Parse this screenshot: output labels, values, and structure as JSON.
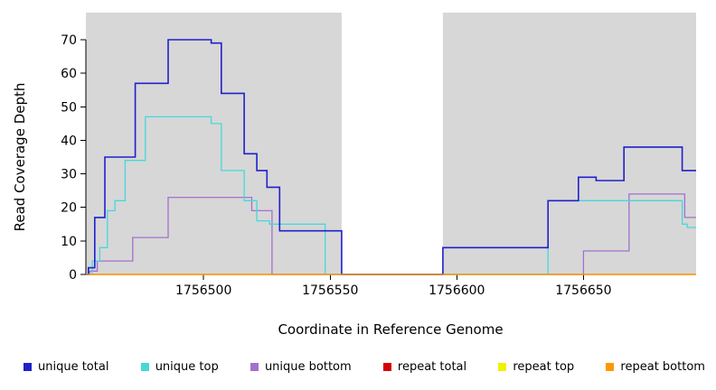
{
  "chart_data": {
    "type": "line",
    "title": "",
    "xlabel": "Coordinate in Reference Genome",
    "ylabel": "Read Coverage Depth",
    "x_range": [
      1756453.5,
      1756694.5
    ],
    "y_range": [
      0,
      78
    ],
    "x_ticks": [
      1756500,
      1756550,
      1756600,
      1756650
    ],
    "y_ticks": [
      0,
      10,
      20,
      30,
      40,
      50,
      60,
      70
    ],
    "interpolation": "step-after",
    "grid": false,
    "legend_position": "bottom",
    "panel_shading": {
      "color": "#D7D7D7",
      "regions": [
        [
          1756453.5,
          1756554.5
        ],
        [
          1756594.5,
          1756694.5
        ]
      ]
    },
    "draw_order": [
      3,
      4,
      2,
      1,
      0,
      5
    ],
    "series": [
      {
        "name": "unique total",
        "color": "#2020CC",
        "line_width": 1.6,
        "steps": [
          [
            1756453.5,
            0
          ],
          [
            1756454.5,
            2
          ],
          [
            1756457,
            17
          ],
          [
            1756461,
            35
          ],
          [
            1756473,
            57
          ],
          [
            1756486,
            70
          ],
          [
            1756503,
            69
          ],
          [
            1756507,
            54
          ],
          [
            1756516,
            36
          ],
          [
            1756521,
            31
          ],
          [
            1756525,
            26
          ],
          [
            1756530,
            13
          ],
          [
            1756554.5,
            0
          ],
          [
            1756594.5,
            8
          ],
          [
            1756636,
            22
          ],
          [
            1756648,
            29
          ],
          [
            1756655,
            28
          ],
          [
            1756666,
            38
          ],
          [
            1756689,
            31
          ]
        ]
      },
      {
        "name": "unique top",
        "color": "#45D8DC",
        "line_width": 1.3,
        "steps": [
          [
            1756453.5,
            0
          ],
          [
            1756456,
            4
          ],
          [
            1756459,
            8
          ],
          [
            1756462,
            19
          ],
          [
            1756465,
            22
          ],
          [
            1756469,
            34
          ],
          [
            1756477,
            47
          ],
          [
            1756503,
            45
          ],
          [
            1756507,
            31
          ],
          [
            1756516,
            22
          ],
          [
            1756521,
            16
          ],
          [
            1756526,
            15
          ],
          [
            1756548,
            0
          ],
          [
            1756636,
            22
          ],
          [
            1756689,
            15
          ],
          [
            1756691,
            14
          ]
        ]
      },
      {
        "name": "unique bottom",
        "color": "#A371CE",
        "line_width": 1.3,
        "steps": [
          [
            1756453.5,
            0
          ],
          [
            1756455,
            1
          ],
          [
            1756458,
            4
          ],
          [
            1756472,
            11
          ],
          [
            1756486,
            23
          ],
          [
            1756519,
            19
          ],
          [
            1756527,
            0
          ],
          [
            1756650,
            7
          ],
          [
            1756668,
            24
          ],
          [
            1756690,
            17
          ]
        ]
      },
      {
        "name": "repeat total",
        "color": "#D40000",
        "line_width": 1.3,
        "steps": [
          [
            1756453.5,
            0
          ]
        ]
      },
      {
        "name": "repeat top",
        "color": "#F0F000",
        "line_width": 1.3,
        "steps": [
          [
            1756453.5,
            0
          ]
        ]
      },
      {
        "name": "repeat bottom",
        "color": "#FF9800",
        "line_width": 1.3,
        "steps": [
          [
            1756453.5,
            0
          ]
        ]
      }
    ]
  }
}
